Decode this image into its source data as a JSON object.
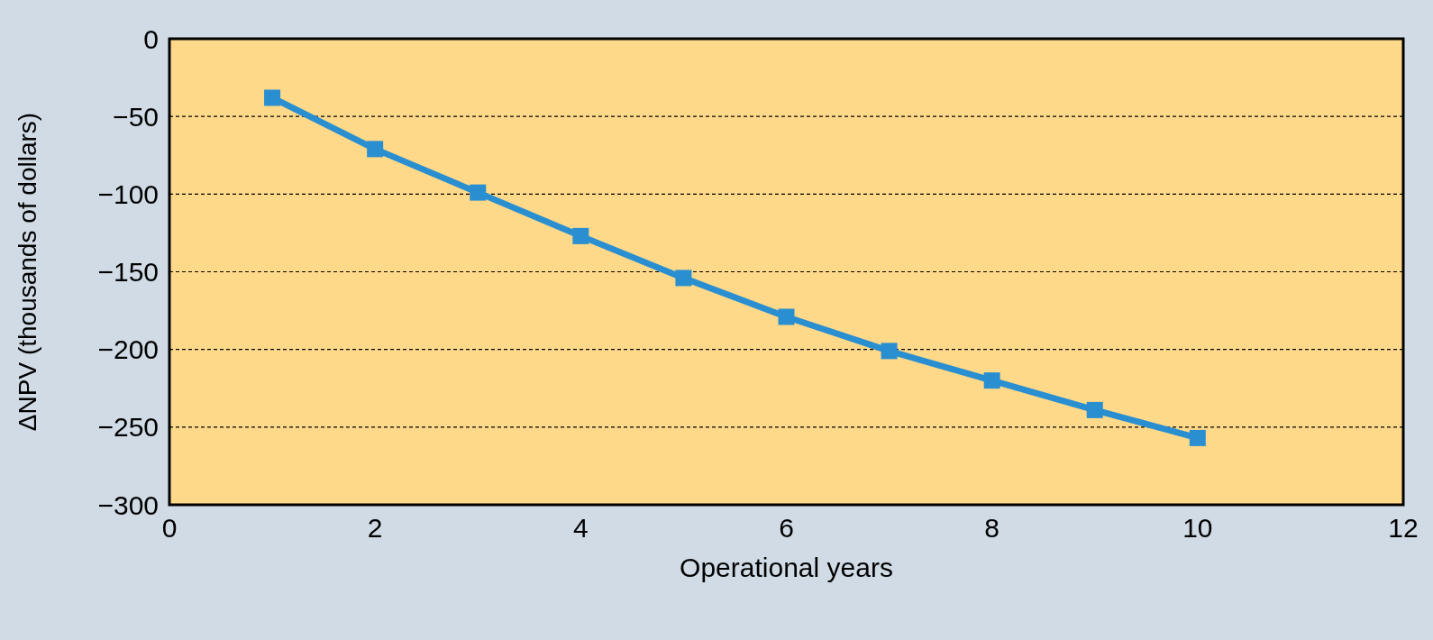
{
  "chart_data": {
    "type": "line",
    "xlabel": "Operational years",
    "ylabel": "ΔNPV (thousands of dollars)",
    "x": [
      1,
      2,
      3,
      4,
      5,
      6,
      7,
      8,
      9,
      10
    ],
    "series": [
      {
        "color": "#2a8fd0",
        "values": [
          -38,
          -71,
          -99,
          -127,
          -154,
          -179,
          -201,
          -220,
          -239,
          -257
        ]
      }
    ],
    "xlim": [
      0,
      12
    ],
    "xticks": [
      0,
      2,
      4,
      6,
      8,
      10,
      12
    ],
    "ylim": [
      -300,
      0
    ],
    "yticks": [
      -300,
      -250,
      -200,
      -150,
      -100,
      -50,
      0
    ],
    "grid": "y",
    "marker": "square",
    "line_style": "solid"
  }
}
